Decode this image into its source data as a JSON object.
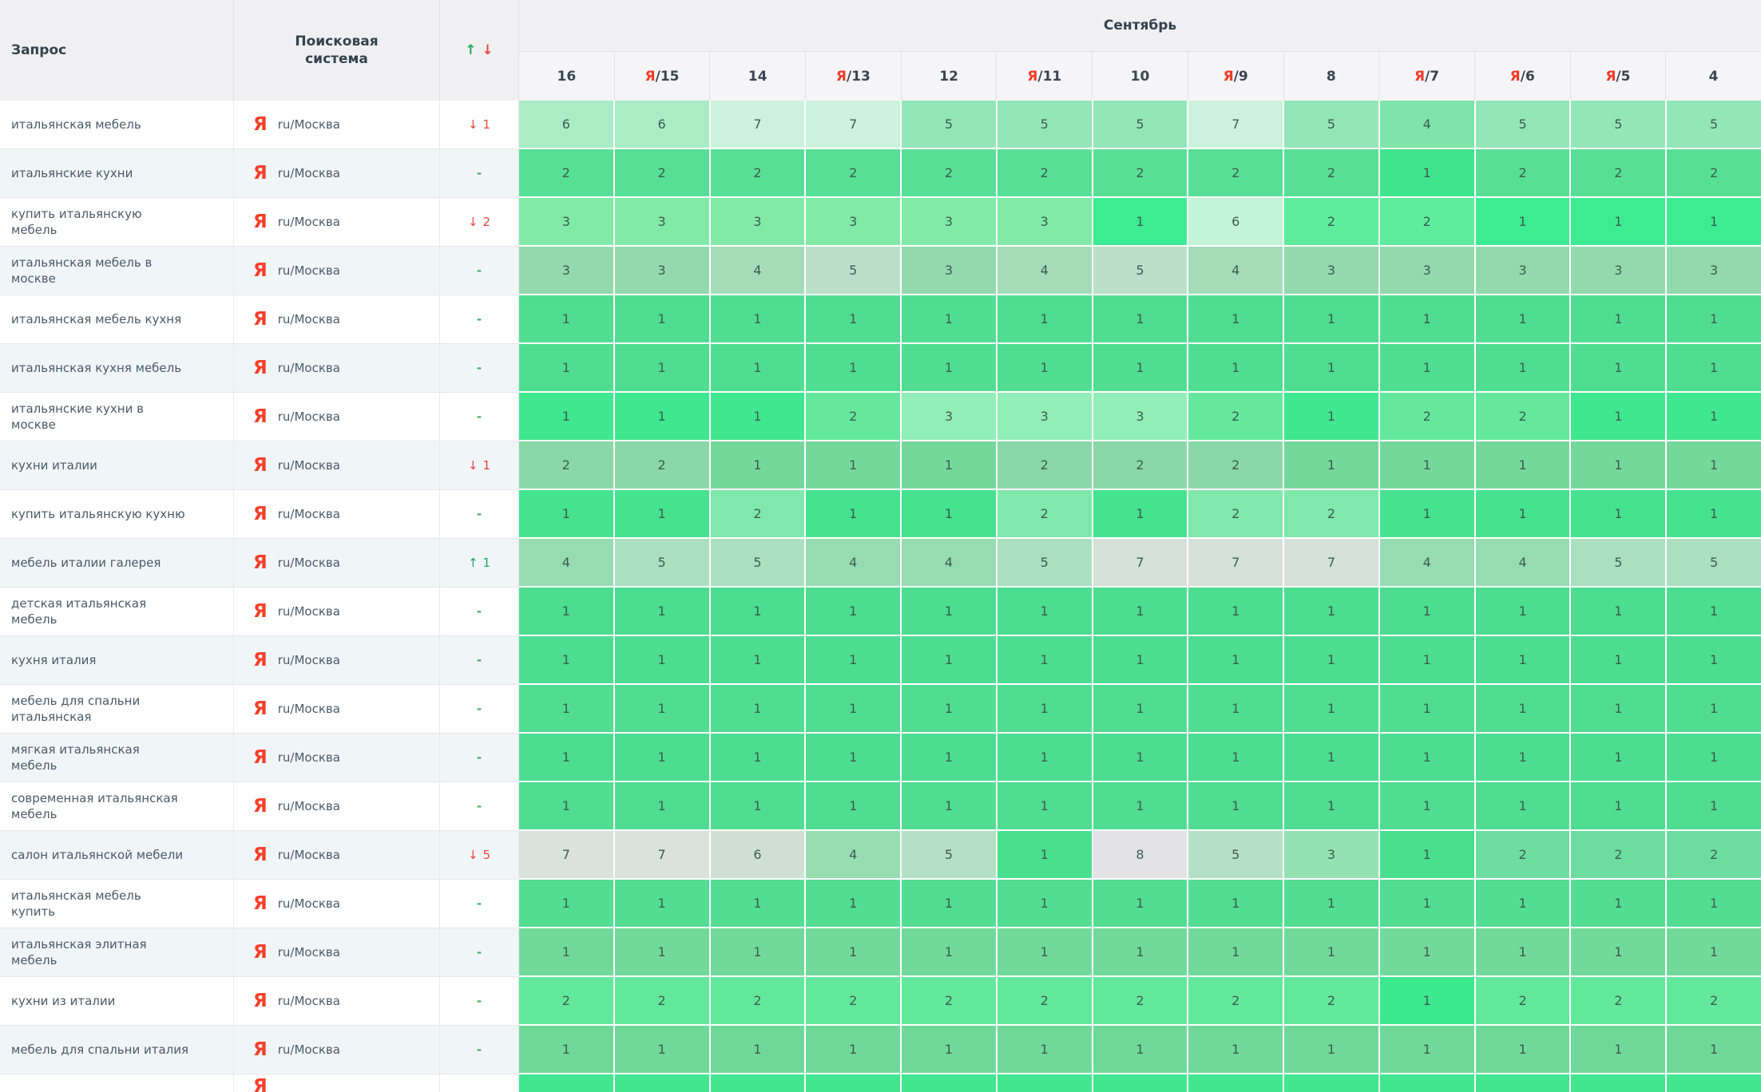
{
  "header": {
    "query": "Запрос",
    "engine": "Поисковая система",
    "up_icon": "↑",
    "down_icon": "↓",
    "month": "Сентябрь",
    "dates": [
      {
        "ya": false,
        "d": "16"
      },
      {
        "ya": true,
        "d": "15"
      },
      {
        "ya": false,
        "d": "14"
      },
      {
        "ya": true,
        "d": "13"
      },
      {
        "ya": false,
        "d": "12"
      },
      {
        "ya": true,
        "d": "11"
      },
      {
        "ya": false,
        "d": "10"
      },
      {
        "ya": true,
        "d": "9"
      },
      {
        "ya": false,
        "d": "8"
      },
      {
        "ya": true,
        "d": "7"
      },
      {
        "ya": true,
        "d": "6"
      },
      {
        "ya": true,
        "d": "5"
      },
      {
        "ya": false,
        "d": "4"
      }
    ],
    "ya_prefix": "Я",
    "ya_separator": "/"
  },
  "engine_label": {
    "icon": "Я",
    "region": "ru/Москва"
  },
  "rows": [
    {
      "q": "итальянская мебель",
      "chg": [
        "down",
        "1"
      ],
      "cells": [
        [
          "6",
          "#a9ecc6"
        ],
        [
          "6",
          "#a9ecc6"
        ],
        [
          "7",
          "#ccf2dd"
        ],
        [
          "7",
          "#ccf2dd"
        ],
        [
          "5",
          "#93e6b8"
        ],
        [
          "5",
          "#93e6b8"
        ],
        [
          "5",
          "#93e6b8"
        ],
        [
          "7",
          "#ccf2dd"
        ],
        [
          "5",
          "#93e6b8"
        ],
        [
          "4",
          "#7ee4a8"
        ],
        [
          "5",
          "#93e6b8"
        ],
        [
          "5",
          "#93e6b8"
        ],
        [
          "5",
          "#93e6b8"
        ]
      ]
    },
    {
      "q": "итальянские кухни",
      "chg": [
        "dash",
        ""
      ],
      "cells": [
        [
          "2",
          "#57e095"
        ],
        [
          "2",
          "#57e095"
        ],
        [
          "2",
          "#57e095"
        ],
        [
          "2",
          "#57e095"
        ],
        [
          "2",
          "#57e095"
        ],
        [
          "2",
          "#57e095"
        ],
        [
          "2",
          "#57e095"
        ],
        [
          "2",
          "#57e095"
        ],
        [
          "2",
          "#57e095"
        ],
        [
          "1",
          "#3ee58d"
        ],
        [
          "2",
          "#57e095"
        ],
        [
          "2",
          "#57e095"
        ],
        [
          "2",
          "#57e095"
        ]
      ]
    },
    {
      "q": "купить итальянскую мебель",
      "chg": [
        "down",
        "2"
      ],
      "cells": [
        [
          "3",
          "#80eaa6"
        ],
        [
          "3",
          "#80eaa6"
        ],
        [
          "3",
          "#80eaa6"
        ],
        [
          "3",
          "#80eaa6"
        ],
        [
          "3",
          "#80eaa6"
        ],
        [
          "3",
          "#80eaa6"
        ],
        [
          "1",
          "#3cec92"
        ],
        [
          "6",
          "#c4f4d7"
        ],
        [
          "2",
          "#5eec9d"
        ],
        [
          "2",
          "#5eec9d"
        ],
        [
          "1",
          "#3cec92"
        ],
        [
          "1",
          "#3cec92"
        ],
        [
          "1",
          "#3cec92"
        ]
      ]
    },
    {
      "q": "итальянская мебель в москве",
      "chg": [
        "dash",
        ""
      ],
      "cells": [
        [
          "3",
          "#93d9ae"
        ],
        [
          "3",
          "#93d9ae"
        ],
        [
          "4",
          "#a4dcb9"
        ],
        [
          "5",
          "#bbdfc8"
        ],
        [
          "3",
          "#93d9ae"
        ],
        [
          "4",
          "#a4dcb9"
        ],
        [
          "5",
          "#bbdfc8"
        ],
        [
          "4",
          "#a4dcb9"
        ],
        [
          "3",
          "#93d9ae"
        ],
        [
          "3",
          "#93d9ae"
        ],
        [
          "3",
          "#93d9ae"
        ],
        [
          "3",
          "#93d9ae"
        ],
        [
          "3",
          "#93d9ae"
        ]
      ]
    },
    {
      "q": "итальянская мебель кухня",
      "chg": [
        "dash",
        ""
      ],
      "cells": [
        [
          "1",
          "#50dd92"
        ],
        [
          "1",
          "#50dd92"
        ],
        [
          "1",
          "#50dd92"
        ],
        [
          "1",
          "#50dd92"
        ],
        [
          "1",
          "#50dd92"
        ],
        [
          "1",
          "#50dd92"
        ],
        [
          "1",
          "#50dd92"
        ],
        [
          "1",
          "#50dd92"
        ],
        [
          "1",
          "#50dd92"
        ],
        [
          "1",
          "#50dd92"
        ],
        [
          "1",
          "#50dd92"
        ],
        [
          "1",
          "#50dd92"
        ],
        [
          "1",
          "#50dd92"
        ]
      ]
    },
    {
      "q": "итальянская кухня мебель",
      "chg": [
        "dash",
        ""
      ],
      "cells": [
        [
          "1",
          "#50dd92"
        ],
        [
          "1",
          "#50dd92"
        ],
        [
          "1",
          "#50dd92"
        ],
        [
          "1",
          "#50dd92"
        ],
        [
          "1",
          "#50dd92"
        ],
        [
          "1",
          "#50dd92"
        ],
        [
          "1",
          "#50dd92"
        ],
        [
          "1",
          "#50dd92"
        ],
        [
          "1",
          "#50dd92"
        ],
        [
          "1",
          "#50dd92"
        ],
        [
          "1",
          "#50dd92"
        ],
        [
          "1",
          "#50dd92"
        ],
        [
          "1",
          "#50dd92"
        ]
      ]
    },
    {
      "q": "итальянские кухни в москве",
      "chg": [
        "dash",
        ""
      ],
      "cells": [
        [
          "1",
          "#40e791"
        ],
        [
          "1",
          "#40e791"
        ],
        [
          "1",
          "#40e791"
        ],
        [
          "2",
          "#64e89e"
        ],
        [
          "3",
          "#92eeb7"
        ],
        [
          "3",
          "#92eeb7"
        ],
        [
          "3",
          "#92eeb7"
        ],
        [
          "2",
          "#64e89e"
        ],
        [
          "1",
          "#40e791"
        ],
        [
          "2",
          "#64e89e"
        ],
        [
          "2",
          "#64e89e"
        ],
        [
          "1",
          "#40e791"
        ],
        [
          "1",
          "#40e791"
        ]
      ]
    },
    {
      "q": "кухни италии",
      "chg": [
        "down",
        "1"
      ],
      "cells": [
        [
          "2",
          "#8ad8a7"
        ],
        [
          "2",
          "#8ad8a7"
        ],
        [
          "1",
          "#74d89b"
        ],
        [
          "1",
          "#74d89b"
        ],
        [
          "1",
          "#74d89b"
        ],
        [
          "2",
          "#8ad8a7"
        ],
        [
          "2",
          "#8ad8a7"
        ],
        [
          "2",
          "#8ad8a7"
        ],
        [
          "1",
          "#74d89b"
        ],
        [
          "1",
          "#74d89b"
        ],
        [
          "1",
          "#74d89b"
        ],
        [
          "1",
          "#74d89b"
        ],
        [
          "1",
          "#74d89b"
        ]
      ]
    },
    {
      "q": "купить итальянскую кухню",
      "chg": [
        "dash",
        ""
      ],
      "cells": [
        [
          "1",
          "#46e290"
        ],
        [
          "1",
          "#46e290"
        ],
        [
          "2",
          "#7fe8ab"
        ],
        [
          "1",
          "#46e290"
        ],
        [
          "1",
          "#46e290"
        ],
        [
          "2",
          "#7fe8ab"
        ],
        [
          "1",
          "#46e290"
        ],
        [
          "2",
          "#7fe8ab"
        ],
        [
          "2",
          "#7fe8ab"
        ],
        [
          "1",
          "#46e290"
        ],
        [
          "1",
          "#46e290"
        ],
        [
          "1",
          "#46e290"
        ],
        [
          "1",
          "#46e290"
        ]
      ]
    },
    {
      "q": "мебель италии галерея",
      "chg": [
        "up",
        "1"
      ],
      "cells": [
        [
          "4",
          "#95dcb2"
        ],
        [
          "5",
          "#aadfc0"
        ],
        [
          "5",
          "#aadfc0"
        ],
        [
          "4",
          "#95dcb2"
        ],
        [
          "4",
          "#95dcb2"
        ],
        [
          "5",
          "#aadfc0"
        ],
        [
          "7",
          "#d5e0d9"
        ],
        [
          "7",
          "#d5e0d9"
        ],
        [
          "7",
          "#d5e0d9"
        ],
        [
          "4",
          "#95dcb2"
        ],
        [
          "4",
          "#95dcb2"
        ],
        [
          "5",
          "#aadfc0"
        ],
        [
          "5",
          "#aadfc0"
        ]
      ]
    },
    {
      "q": "детская итальянская мебель",
      "chg": [
        "dash",
        ""
      ],
      "cells": [
        [
          "1",
          "#4cdd90"
        ],
        [
          "1",
          "#4cdd90"
        ],
        [
          "1",
          "#4cdd90"
        ],
        [
          "1",
          "#4cdd90"
        ],
        [
          "1",
          "#4cdd90"
        ],
        [
          "1",
          "#4cdd90"
        ],
        [
          "1",
          "#4cdd90"
        ],
        [
          "1",
          "#4cdd90"
        ],
        [
          "1",
          "#4cdd90"
        ],
        [
          "1",
          "#4cdd90"
        ],
        [
          "1",
          "#4cdd90"
        ],
        [
          "1",
          "#4cdd90"
        ],
        [
          "1",
          "#4cdd90"
        ]
      ]
    },
    {
      "q": "кухня италия",
      "chg": [
        "dash",
        ""
      ],
      "cells": [
        [
          "1",
          "#4cdd90"
        ],
        [
          "1",
          "#4cdd90"
        ],
        [
          "1",
          "#4cdd90"
        ],
        [
          "1",
          "#4cdd90"
        ],
        [
          "1",
          "#4cdd90"
        ],
        [
          "1",
          "#4cdd90"
        ],
        [
          "1",
          "#4cdd90"
        ],
        [
          "1",
          "#4cdd90"
        ],
        [
          "1",
          "#4cdd90"
        ],
        [
          "1",
          "#4cdd90"
        ],
        [
          "1",
          "#4cdd90"
        ],
        [
          "1",
          "#4cdd90"
        ],
        [
          "1",
          "#4cdd90"
        ]
      ]
    },
    {
      "q": "мебель для спальни итальянская",
      "chg": [
        "dash",
        ""
      ],
      "cells": [
        [
          "1",
          "#50dd92"
        ],
        [
          "1",
          "#50dd92"
        ],
        [
          "1",
          "#50dd92"
        ],
        [
          "1",
          "#50dd92"
        ],
        [
          "1",
          "#50dd92"
        ],
        [
          "1",
          "#50dd92"
        ],
        [
          "1",
          "#50dd92"
        ],
        [
          "1",
          "#50dd92"
        ],
        [
          "1",
          "#50dd92"
        ],
        [
          "1",
          "#50dd92"
        ],
        [
          "1",
          "#50dd92"
        ],
        [
          "1",
          "#50dd92"
        ],
        [
          "1",
          "#50dd92"
        ]
      ]
    },
    {
      "q": "мягкая итальянская мебель",
      "chg": [
        "dash",
        ""
      ],
      "cells": [
        [
          "1",
          "#4cdd90"
        ],
        [
          "1",
          "#4cdd90"
        ],
        [
          "1",
          "#4cdd90"
        ],
        [
          "1",
          "#4cdd90"
        ],
        [
          "1",
          "#4cdd90"
        ],
        [
          "1",
          "#4cdd90"
        ],
        [
          "1",
          "#4cdd90"
        ],
        [
          "1",
          "#4cdd90"
        ],
        [
          "1",
          "#4cdd90"
        ],
        [
          "1",
          "#4cdd90"
        ],
        [
          "1",
          "#4cdd90"
        ],
        [
          "1",
          "#4cdd90"
        ],
        [
          "1",
          "#4cdd90"
        ]
      ]
    },
    {
      "q": "современная итальянская мебель",
      "chg": [
        "dash",
        ""
      ],
      "cells": [
        [
          "1",
          "#50dd92"
        ],
        [
          "1",
          "#50dd92"
        ],
        [
          "1",
          "#50dd92"
        ],
        [
          "1",
          "#50dd92"
        ],
        [
          "1",
          "#50dd92"
        ],
        [
          "1",
          "#50dd92"
        ],
        [
          "1",
          "#50dd92"
        ],
        [
          "1",
          "#50dd92"
        ],
        [
          "1",
          "#50dd92"
        ],
        [
          "1",
          "#50dd92"
        ],
        [
          "1",
          "#50dd92"
        ],
        [
          "1",
          "#50dd92"
        ],
        [
          "1",
          "#50dd92"
        ]
      ]
    },
    {
      "q": "салон итальянской мебели",
      "chg": [
        "down",
        "5"
      ],
      "cells": [
        [
          "7",
          "#d9e2db"
        ],
        [
          "7",
          "#d9e2db"
        ],
        [
          "6",
          "#cfe0d3"
        ],
        [
          "4",
          "#96deb2"
        ],
        [
          "5",
          "#b5e0c5"
        ],
        [
          "1",
          "#48df8e"
        ],
        [
          "8",
          "#e3e3e5"
        ],
        [
          "5",
          "#b5e0c5"
        ],
        [
          "3",
          "#94e2b2"
        ],
        [
          "1",
          "#48df8e"
        ],
        [
          "2",
          "#6cdd9f"
        ],
        [
          "2",
          "#6cdd9f"
        ],
        [
          "2",
          "#6cdd9f"
        ]
      ]
    },
    {
      "q": "итальянская мебель купить",
      "chg": [
        "dash",
        ""
      ],
      "cells": [
        [
          "1",
          "#52dd92"
        ],
        [
          "1",
          "#52dd92"
        ],
        [
          "1",
          "#52dd92"
        ],
        [
          "1",
          "#52dd92"
        ],
        [
          "1",
          "#52dd92"
        ],
        [
          "1",
          "#52dd92"
        ],
        [
          "1",
          "#52dd92"
        ],
        [
          "1",
          "#52dd92"
        ],
        [
          "1",
          "#52dd92"
        ],
        [
          "1",
          "#52dd92"
        ],
        [
          "1",
          "#52dd92"
        ],
        [
          "1",
          "#52dd92"
        ],
        [
          "1",
          "#52dd92"
        ]
      ]
    },
    {
      "q": "итальянская элитная мебель",
      "chg": [
        "dash",
        ""
      ],
      "cells": [
        [
          "1",
          "#71da9b"
        ],
        [
          "1",
          "#71da9b"
        ],
        [
          "1",
          "#71da9b"
        ],
        [
          "1",
          "#71da9b"
        ],
        [
          "1",
          "#71da9b"
        ],
        [
          "1",
          "#71da9b"
        ],
        [
          "1",
          "#71da9b"
        ],
        [
          "1",
          "#71da9b"
        ],
        [
          "1",
          "#71da9b"
        ],
        [
          "1",
          "#71da9b"
        ],
        [
          "1",
          "#71da9b"
        ],
        [
          "1",
          "#71da9b"
        ],
        [
          "1",
          "#71da9b"
        ]
      ]
    },
    {
      "q": "кухни из италии",
      "chg": [
        "dash",
        ""
      ],
      "cells": [
        [
          "2",
          "#62e89d"
        ],
        [
          "2",
          "#62e89d"
        ],
        [
          "2",
          "#62e89d"
        ],
        [
          "2",
          "#62e89d"
        ],
        [
          "2",
          "#62e89d"
        ],
        [
          "2",
          "#62e89d"
        ],
        [
          "2",
          "#62e89d"
        ],
        [
          "2",
          "#62e89d"
        ],
        [
          "2",
          "#62e89d"
        ],
        [
          "1",
          "#3ee88e"
        ],
        [
          "2",
          "#62e89d"
        ],
        [
          "2",
          "#62e89d"
        ],
        [
          "2",
          "#62e89d"
        ]
      ]
    },
    {
      "q": "мебель для спальни италия",
      "chg": [
        "dash",
        ""
      ],
      "cells": [
        [
          "1",
          "#6fd999"
        ],
        [
          "1",
          "#6fd999"
        ],
        [
          "1",
          "#6fd999"
        ],
        [
          "1",
          "#6fd999"
        ],
        [
          "1",
          "#6fd999"
        ],
        [
          "1",
          "#6fd999"
        ],
        [
          "1",
          "#6fd999"
        ],
        [
          "1",
          "#6fd999"
        ],
        [
          "1",
          "#6fd999"
        ],
        [
          "1",
          "#6fd999"
        ],
        [
          "1",
          "#6fd999"
        ],
        [
          "1",
          "#6fd999"
        ],
        [
          "1",
          "#6fd999"
        ]
      ]
    },
    {
      "q": "",
      "chg": [
        "none",
        ""
      ],
      "partial": true,
      "cells": [
        [
          "",
          "#41e68f"
        ],
        [
          "",
          "#41e68f"
        ],
        [
          "",
          "#41e68f"
        ],
        [
          "",
          "#41e68f"
        ],
        [
          "",
          "#41e68f"
        ],
        [
          "",
          "#41e68f"
        ],
        [
          "",
          "#41e68f"
        ],
        [
          "",
          "#41e68f"
        ],
        [
          "",
          "#41e68f"
        ],
        [
          "",
          "#41e68f"
        ],
        [
          "",
          "#41e68f"
        ],
        [
          "",
          "#41e68f"
        ],
        [
          "",
          "#41e68f"
        ]
      ]
    }
  ],
  "colors": {
    "yandex_red": "#f5402b",
    "change_down": "#e8473b",
    "change_up": "#23a75f",
    "change_none": "#4aa96a",
    "alt_row_bg": "#f0f5f8",
    "header_bg": "#f0f0f2",
    "cell_text": "#3c5c50"
  }
}
